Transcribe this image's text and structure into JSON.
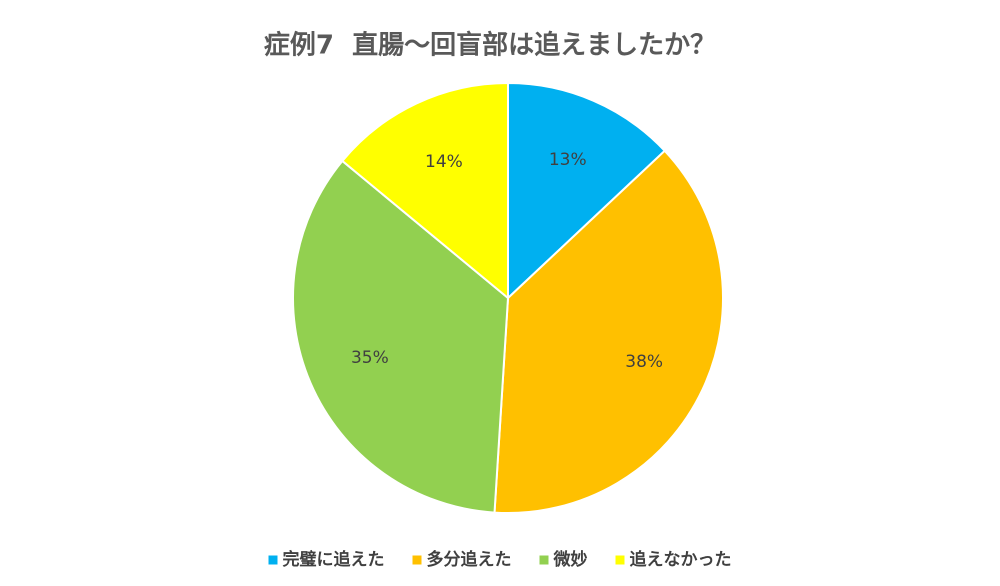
{
  "chart_data": {
    "type": "pie",
    "title": "症例7  直腸～回盲部は追えましたか？",
    "categories": [
      "完璧に追えた",
      "多分追えた",
      "微妙",
      "追えなかった"
    ],
    "values": [
      13,
      38,
      35,
      14
    ],
    "value_labels": [
      "13%",
      "38%",
      "35%",
      "14%"
    ],
    "colors": [
      "#00b0f0",
      "#ffc000",
      "#92d050",
      "#ffff00"
    ],
    "legend": "bottom"
  }
}
